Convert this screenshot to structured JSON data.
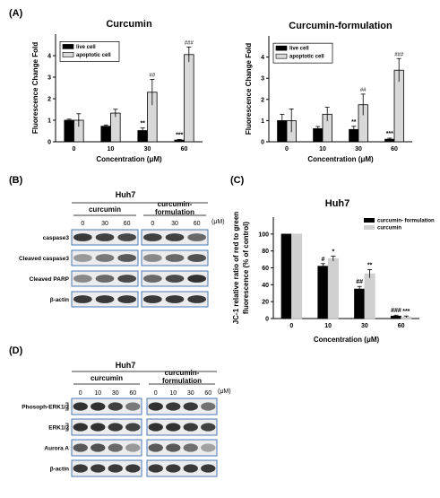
{
  "panels": {
    "A": {
      "letter": "(A)",
      "charts": [
        {
          "type": "bar",
          "title": "Curcumin",
          "xlabel": "Concentration (μM)",
          "ylabel": "Fluorescence Change Fold",
          "ylim": [
            0,
            5
          ],
          "yticks": [
            "0",
            "1",
            "2",
            "3",
            "4"
          ],
          "categories": [
            "0",
            "10",
            "30",
            "60"
          ],
          "legend_position": "upper-left",
          "series": [
            {
              "name": "live cell",
              "values": [
                1.0,
                0.72,
                0.52,
                0.08
              ],
              "errors": [
                0.05,
                0.06,
                0.12,
                0.03
              ],
              "color": "#000000"
            },
            {
              "name": "apoptotic cell",
              "values": [
                1.0,
                1.33,
                2.3,
                4.05
              ],
              "errors": [
                0.3,
                0.18,
                0.6,
                0.35
              ],
              "color": "#d9d9d9"
            }
          ],
          "annotations": [
            {
              "series": 0,
              "index": 2,
              "text": "**"
            },
            {
              "series": 0,
              "index": 3,
              "text": "***"
            },
            {
              "series": 1,
              "index": 2,
              "text": "##"
            },
            {
              "series": 1,
              "index": 3,
              "text": "###"
            }
          ]
        },
        {
          "type": "bar",
          "title": "Curcumin-formulation",
          "xlabel": "Concentration (μM)",
          "ylabel": "Fluorescence Change Fold",
          "ylim": [
            0,
            5
          ],
          "yticks": [
            "0",
            "1",
            "2",
            "3",
            "4"
          ],
          "categories": [
            "0",
            "10",
            "30",
            "60"
          ],
          "legend_position": "upper-left",
          "series": [
            {
              "name": "live cell",
              "values": [
                1.0,
                0.62,
                0.58,
                0.12
              ],
              "errors": [
                0.3,
                0.1,
                0.15,
                0.05
              ],
              "color": "#000000"
            },
            {
              "name": "apoptotic cell",
              "values": [
                1.0,
                1.3,
                1.75,
                3.38
              ],
              "errors": [
                0.55,
                0.33,
                0.5,
                0.55
              ],
              "color": "#d9d9d9"
            }
          ],
          "annotations": [
            {
              "series": 0,
              "index": 2,
              "text": "**"
            },
            {
              "series": 0,
              "index": 3,
              "text": "***"
            },
            {
              "series": 1,
              "index": 2,
              "text": "##"
            },
            {
              "series": 1,
              "index": 3,
              "text": "###"
            }
          ]
        }
      ]
    },
    "B": {
      "letter": "(B)",
      "cell_line": "Huh7",
      "groups": [
        "curcumin",
        "curcumin-\nformulation"
      ],
      "concentrations": [
        "0",
        "30",
        "60"
      ],
      "unit": "(μM)",
      "rows": [
        "caspase3",
        "Cleaved caspase3",
        "Cleaved PARP",
        "β-actin"
      ]
    },
    "C": {
      "letter": "(C)",
      "chart": {
        "type": "bar",
        "title": "Huh7",
        "xlabel": "Concentration (μM)",
        "ylabel": "JC-1 relative ratio of red to green fluorescence (% of control)",
        "ylabel_lines": [
          "JC-1 relative ratio of red to green",
          "fluorescence (% of control)"
        ],
        "ylim": [
          0,
          120
        ],
        "yticks": [
          "0",
          "20",
          "40",
          "60",
          "80",
          "100"
        ],
        "categories": [
          "0",
          "10",
          "30",
          "60"
        ],
        "legend_position": "upper-right",
        "series": [
          {
            "name": "curcumin- formulation",
            "values": [
              100,
              62,
              35,
              3
            ],
            "errors": [
              0,
              3,
              3,
              1
            ],
            "color": "#000000"
          },
          {
            "name": "curcumin",
            "values": [
              100,
              71,
              53,
              2
            ],
            "errors": [
              0,
              3,
              5,
              1
            ],
            "color": "#d0d0d0"
          }
        ],
        "annotations": [
          {
            "series": 0,
            "index": 1,
            "text": "#"
          },
          {
            "series": 1,
            "index": 1,
            "text": "*"
          },
          {
            "series": 0,
            "index": 2,
            "text": "##"
          },
          {
            "series": 1,
            "index": 2,
            "text": "**"
          },
          {
            "series": 0,
            "index": 3,
            "text": "###"
          },
          {
            "series": 1,
            "index": 3,
            "text": "***"
          }
        ]
      }
    },
    "D": {
      "letter": "(D)",
      "cell_line": "Huh7",
      "groups": [
        "curcumin",
        "curcumin-\nformulation"
      ],
      "concentrations": [
        "0",
        "10",
        "30",
        "60"
      ],
      "unit": "(μM)",
      "rows": [
        "Phosoph-ERK1/2",
        "ERK1/2",
        "Aurora A",
        "β-actin"
      ]
    }
  }
}
